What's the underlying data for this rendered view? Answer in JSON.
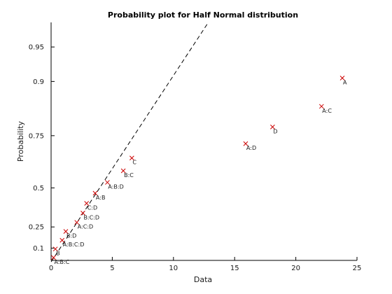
{
  "chart_data": {
    "type": "scatter",
    "title": "Probability plot for Half Normal distribution",
    "xlabel": "Data",
    "ylabel": "Probability",
    "xlim": [
      0,
      25
    ],
    "xticks": [
      0,
      5,
      10,
      15,
      20,
      25
    ],
    "xtick_labels": [
      "0",
      "5",
      "10",
      "15",
      "20",
      "25"
    ],
    "yticks": [
      0.1,
      0.25,
      0.5,
      0.75,
      0.9,
      0.95
    ],
    "ytick_labels": [
      "0.1",
      "0.25",
      "0.5",
      "0.75",
      "0.9",
      "0.95"
    ],
    "grid": false,
    "marker": "x",
    "marker_color": "#cc0000",
    "reference_line": {
      "style": "dashed",
      "color": "#000000",
      "x": [
        0,
        13.0
      ]
    },
    "points": [
      {
        "label": "A:B:C",
        "x": 0.2,
        "y": 0.03125
      },
      {
        "label": "B",
        "x": 0.35,
        "y": 0.09375
      },
      {
        "label": "A:B:C:D",
        "x": 0.9,
        "y": 0.15625
      },
      {
        "label": "B:D",
        "x": 1.2,
        "y": 0.21875
      },
      {
        "label": "A:C:D",
        "x": 2.1,
        "y": 0.28125
      },
      {
        "label": "B:C:D",
        "x": 2.6,
        "y": 0.34375
      },
      {
        "label": "C:D",
        "x": 2.9,
        "y": 0.40625
      },
      {
        "label": "A:B",
        "x": 3.6,
        "y": 0.46875
      },
      {
        "label": "A:B:D",
        "x": 4.6,
        "y": 0.53125
      },
      {
        "label": "B:C",
        "x": 5.9,
        "y": 0.59375
      },
      {
        "label": "C",
        "x": 6.6,
        "y": 0.65625
      },
      {
        "label": "A:D",
        "x": 15.9,
        "y": 0.71875
      },
      {
        "label": "D",
        "x": 18.1,
        "y": 0.78125
      },
      {
        "label": "A:C",
        "x": 22.1,
        "y": 0.84375
      },
      {
        "label": "A",
        "x": 23.8,
        "y": 0.90625
      }
    ]
  }
}
